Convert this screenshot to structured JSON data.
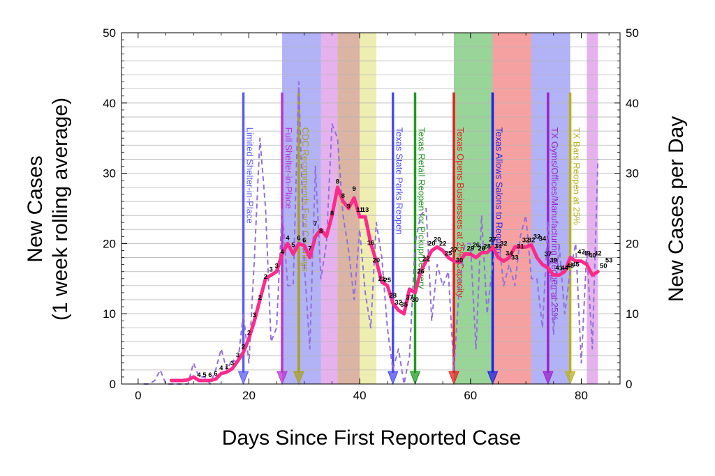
{
  "chart_data": {
    "type": "line",
    "xlabel": "Days Since First Reported Case",
    "ylabel_left_line1": "New Cases",
    "ylabel_left_line2": "(1 week rolling average)",
    "ylabel_right": "New Cases per Day",
    "xlim": [
      -3,
      87
    ],
    "ylim": [
      0,
      50
    ],
    "grid": "horizontal",
    "x_ticks": [
      0,
      20,
      40,
      60,
      80
    ],
    "y_ticks": [
      0,
      10,
      20,
      30,
      40,
      50
    ],
    "shaded_bands": [
      {
        "x0": 26,
        "x1": 33,
        "color": "#6666ee"
      },
      {
        "x0": 33,
        "x1": 36,
        "color": "#cc66dd"
      },
      {
        "x0": 36,
        "x1": 40,
        "color": "#b86a4a"
      },
      {
        "x0": 40,
        "x1": 43,
        "color": "#dddd66"
      },
      {
        "x0": 57,
        "x1": 64,
        "color": "#33aa33"
      },
      {
        "x0": 64,
        "x1": 71,
        "color": "#ee4444"
      },
      {
        "x0": 71,
        "x1": 78,
        "color": "#6666ee"
      },
      {
        "x0": 81,
        "x1": 83,
        "color": "#cc66dd"
      }
    ],
    "events": [
      {
        "day": 19,
        "label": "Limited Shelter-in-Place",
        "color": "#5b5bf5"
      },
      {
        "day": 26,
        "label": "Full Shelter-in-Place",
        "color": "#bb33cc"
      },
      {
        "day": 29,
        "label": "CDC Recommends Face Coverings",
        "color": "#a8a020"
      },
      {
        "day": 46,
        "label": "Texas State Parks Reopen",
        "color": "#4a4af0"
      },
      {
        "day": 50,
        "label": "Texas Retail Reopen for Pickup/Delivery",
        "color": "#229922"
      },
      {
        "day": 57,
        "label": "Texas Opens Businesses at 25% Capacity",
        "color": "#e02020"
      },
      {
        "day": 64,
        "label": "Texas Allows Salons to Reopen",
        "color": "#2222dd"
      },
      {
        "day": 74,
        "label": "TX Gyms/Offices/Manufacturing Reopen at 25%",
        "color": "#9922cc"
      },
      {
        "day": 78,
        "label": "TX Bars Reopen at 25%",
        "color": "#b8b020"
      }
    ],
    "series": [
      {
        "name": "",
        "style": "solid",
        "color": "#ff2a8a",
        "points": [
          [
            6,
            0.5
          ],
          [
            8,
            0.5
          ],
          [
            9,
            0.6
          ],
          [
            10,
            1
          ],
          [
            11,
            0.5
          ],
          [
            12,
            0.5
          ],
          [
            13,
            0.5
          ],
          [
            14,
            0.7
          ],
          [
            15,
            1.5
          ],
          [
            16,
            1.7
          ],
          [
            17,
            2.2
          ],
          [
            18,
            3.3
          ],
          [
            19,
            4.5
          ],
          [
            20,
            6.5
          ],
          [
            21,
            9
          ],
          [
            22,
            12
          ],
          [
            23,
            15
          ],
          [
            24,
            15.5
          ],
          [
            25,
            16
          ],
          [
            26,
            18.5
          ],
          [
            27,
            20
          ],
          [
            28,
            18.5
          ],
          [
            29,
            20
          ],
          [
            30,
            19.7
          ],
          [
            31,
            18
          ],
          [
            32,
            21
          ],
          [
            33,
            22
          ],
          [
            34,
            21
          ],
          [
            35,
            24
          ],
          [
            36,
            28
          ],
          [
            37,
            26
          ],
          [
            38,
            25
          ],
          [
            39,
            26.5
          ],
          [
            40,
            23.8
          ],
          [
            41,
            23.8
          ],
          [
            42,
            20
          ],
          [
            43,
            17.5
          ],
          [
            44,
            14.5
          ],
          [
            45,
            14
          ],
          [
            46,
            11.5
          ],
          [
            47,
            10.5
          ],
          [
            48,
            10
          ],
          [
            49,
            13.5
          ],
          [
            50,
            13
          ],
          [
            51,
            16
          ],
          [
            52,
            17.5
          ],
          [
            53,
            19
          ],
          [
            54,
            19.5
          ],
          [
            55,
            19
          ],
          [
            56,
            18
          ],
          [
            57,
            17.5
          ],
          [
            58,
            17.3
          ],
          [
            59,
            18.5
          ],
          [
            60,
            18.5
          ],
          [
            61,
            18
          ],
          [
            62,
            18.7
          ],
          [
            63,
            18.7
          ],
          [
            64,
            19.5
          ],
          [
            65,
            18
          ],
          [
            66,
            17.5
          ],
          [
            67,
            18
          ],
          [
            68,
            19.5
          ],
          [
            69,
            19.5
          ],
          [
            70,
            19.5
          ],
          [
            71,
            19.8
          ],
          [
            72,
            18
          ],
          [
            73,
            17
          ],
          [
            74,
            16.5
          ],
          [
            75,
            15.5
          ],
          [
            76,
            15.5
          ],
          [
            77,
            16
          ],
          [
            78,
            18
          ],
          [
            79,
            17.5
          ],
          [
            80,
            17.5
          ],
          [
            81,
            17
          ],
          [
            82,
            15.5
          ],
          [
            83,
            16
          ]
        ],
        "labels": [
          {
            "x": 11,
            "y": 1,
            "text": "4"
          },
          {
            "x": 12,
            "y": 1,
            "text": "5"
          },
          {
            "x": 13,
            "y": 1,
            "text": "6"
          },
          {
            "x": 14,
            "y": 1.2,
            "text": "6"
          },
          {
            "x": 15,
            "y": 2,
            "text": "4"
          },
          {
            "x": 16,
            "y": 2.2,
            "text": "1"
          },
          {
            "x": 17,
            "y": 2.7,
            "text": "3"
          },
          {
            "x": 18,
            "y": 3.8,
            "text": "3"
          },
          {
            "x": 19,
            "y": 5,
            "text": "2"
          },
          {
            "x": 20,
            "y": 7,
            "text": "2"
          },
          {
            "x": 21,
            "y": 9.5,
            "text": "3"
          },
          {
            "x": 22,
            "y": 12,
            "text": "2"
          },
          {
            "x": 23,
            "y": 15,
            "text": "2"
          },
          {
            "x": 24,
            "y": 16,
            "text": "3"
          },
          {
            "x": 25,
            "y": 16.5,
            "text": "3"
          },
          {
            "x": 26,
            "y": 18.5,
            "text": "4"
          },
          {
            "x": 27,
            "y": 20.5,
            "text": "4"
          },
          {
            "x": 28,
            "y": 19.5,
            "text": "5"
          },
          {
            "x": 29,
            "y": 20.5,
            "text": "6"
          },
          {
            "x": 30,
            "y": 20.2,
            "text": "6"
          },
          {
            "x": 31,
            "y": 19,
            "text": "7"
          },
          {
            "x": 32,
            "y": 22.5,
            "text": "7"
          },
          {
            "x": 33,
            "y": 21.5,
            "text": "8"
          },
          {
            "x": 35,
            "y": 24,
            "text": "8"
          },
          {
            "x": 36,
            "y": 28.5,
            "text": "8"
          },
          {
            "x": 37,
            "y": 26.5,
            "text": "8"
          },
          {
            "x": 38,
            "y": 25,
            "text": "9"
          },
          {
            "x": 39,
            "y": 27.5,
            "text": "9"
          },
          {
            "x": 40,
            "y": 24.5,
            "text": "11"
          },
          {
            "x": 41,
            "y": 24.5,
            "text": "13"
          },
          {
            "x": 42,
            "y": 19.8,
            "text": "16"
          },
          {
            "x": 43,
            "y": 17.3,
            "text": "20"
          },
          {
            "x": 44,
            "y": 14.7,
            "text": "21"
          },
          {
            "x": 45,
            "y": 14.5,
            "text": "25"
          },
          {
            "x": 46,
            "y": 12.3,
            "text": "28"
          },
          {
            "x": 47,
            "y": 11.3,
            "text": "32"
          },
          {
            "x": 48,
            "y": 11,
            "text": "35"
          },
          {
            "x": 49,
            "y": 12,
            "text": "37"
          },
          {
            "x": 50,
            "y": 11.7,
            "text": "30"
          },
          {
            "x": 51,
            "y": 15.7,
            "text": "26"
          },
          {
            "x": 52,
            "y": 17.5,
            "text": "22"
          },
          {
            "x": 53,
            "y": 19.7,
            "text": "20"
          },
          {
            "x": 54,
            "y": 20.3,
            "text": "20"
          },
          {
            "x": 55,
            "y": 19.7,
            "text": "22"
          },
          {
            "x": 56,
            "y": 18.3,
            "text": "25"
          },
          {
            "x": 57,
            "y": 18.8,
            "text": "27"
          },
          {
            "x": 58,
            "y": 17.3,
            "text": "30"
          },
          {
            "x": 60,
            "y": 19,
            "text": "29"
          },
          {
            "x": 61,
            "y": 19.5,
            "text": "26"
          },
          {
            "x": 62,
            "y": 19,
            "text": "26"
          },
          {
            "x": 63,
            "y": 19.3,
            "text": "28"
          },
          {
            "x": 64,
            "y": 20.3,
            "text": "27"
          },
          {
            "x": 65,
            "y": 19.3,
            "text": "34"
          },
          {
            "x": 66,
            "y": 19.7,
            "text": "32"
          },
          {
            "x": 67,
            "y": 18.3,
            "text": "34"
          },
          {
            "x": 68,
            "y": 17.7,
            "text": "33"
          },
          {
            "x": 69,
            "y": 19.3,
            "text": "31"
          },
          {
            "x": 70,
            "y": 20.2,
            "text": "32"
          },
          {
            "x": 71,
            "y": 20.2,
            "text": "32"
          },
          {
            "x": 72,
            "y": 20.7,
            "text": "32"
          },
          {
            "x": 73,
            "y": 20.4,
            "text": "34"
          },
          {
            "x": 74,
            "y": 18.2,
            "text": "37"
          },
          {
            "x": 75,
            "y": 17.3,
            "text": "39"
          },
          {
            "x": 76,
            "y": 16.2,
            "text": "41"
          },
          {
            "x": 77,
            "y": 16.2,
            "text": "44"
          },
          {
            "x": 78,
            "y": 16.5,
            "text": "48"
          },
          {
            "x": 79,
            "y": 16.7,
            "text": "45"
          },
          {
            "x": 80,
            "y": 18.5,
            "text": "47"
          },
          {
            "x": 81,
            "y": 18.3,
            "text": "49"
          },
          {
            "x": 82,
            "y": 18,
            "text": "40"
          },
          {
            "x": 83,
            "y": 18.3,
            "text": "42"
          },
          {
            "x": 84,
            "y": 16.5,
            "text": "50"
          },
          {
            "x": 85,
            "y": 17.3,
            "text": "53"
          }
        ]
      },
      {
        "name": "",
        "style": "dashed",
        "color": "#9370DB",
        "points": [
          [
            1,
            0
          ],
          [
            2,
            0
          ],
          [
            3,
            0.5
          ],
          [
            4,
            2
          ],
          [
            5,
            0
          ],
          [
            6,
            0
          ],
          [
            7,
            0
          ],
          [
            8,
            0
          ],
          [
            9,
            0
          ],
          [
            10,
            3
          ],
          [
            11,
            1
          ],
          [
            12,
            1
          ],
          [
            13,
            0
          ],
          [
            14,
            2
          ],
          [
            15,
            5
          ],
          [
            16,
            2
          ],
          [
            17,
            3.5
          ],
          [
            18,
            3
          ],
          [
            19,
            10
          ],
          [
            20,
            3
          ],
          [
            21,
            18
          ],
          [
            22,
            35
          ],
          [
            23,
            25
          ],
          [
            24,
            6
          ],
          [
            25,
            8
          ],
          [
            26,
            25
          ],
          [
            27,
            14
          ],
          [
            28,
            14
          ],
          [
            29,
            43
          ],
          [
            30,
            17
          ],
          [
            31,
            5
          ],
          [
            32,
            31
          ],
          [
            33,
            15
          ],
          [
            34,
            20
          ],
          [
            35,
            37
          ],
          [
            36,
            35
          ],
          [
            37,
            24
          ],
          [
            38,
            19
          ],
          [
            39,
            12
          ],
          [
            40,
            22
          ],
          [
            41,
            13
          ],
          [
            42,
            8
          ],
          [
            43,
            23
          ],
          [
            44,
            18
          ],
          [
            45,
            8
          ],
          [
            46,
            2
          ],
          [
            47,
            5
          ],
          [
            48,
            0
          ],
          [
            49,
            4
          ],
          [
            50,
            20
          ],
          [
            51,
            24
          ],
          [
            52,
            25
          ],
          [
            53,
            9
          ],
          [
            54,
            17
          ],
          [
            55,
            14
          ],
          [
            56,
            16
          ],
          [
            57,
            2
          ],
          [
            58,
            14
          ],
          [
            59,
            20
          ],
          [
            60,
            20
          ],
          [
            61,
            5
          ],
          [
            62,
            24
          ],
          [
            63,
            10
          ],
          [
            64,
            17
          ],
          [
            65,
            21
          ],
          [
            66,
            14
          ],
          [
            67,
            17
          ],
          [
            68,
            14
          ],
          [
            69,
            21
          ],
          [
            70,
            24
          ],
          [
            71,
            15
          ],
          [
            72,
            15
          ],
          [
            73,
            8
          ],
          [
            74,
            23
          ],
          [
            75,
            7
          ],
          [
            76,
            20
          ],
          [
            77,
            10
          ],
          [
            78,
            16
          ],
          [
            79,
            20
          ],
          [
            80,
            3
          ],
          [
            81,
            19
          ],
          [
            82,
            5
          ],
          [
            83,
            32
          ]
        ]
      }
    ]
  }
}
